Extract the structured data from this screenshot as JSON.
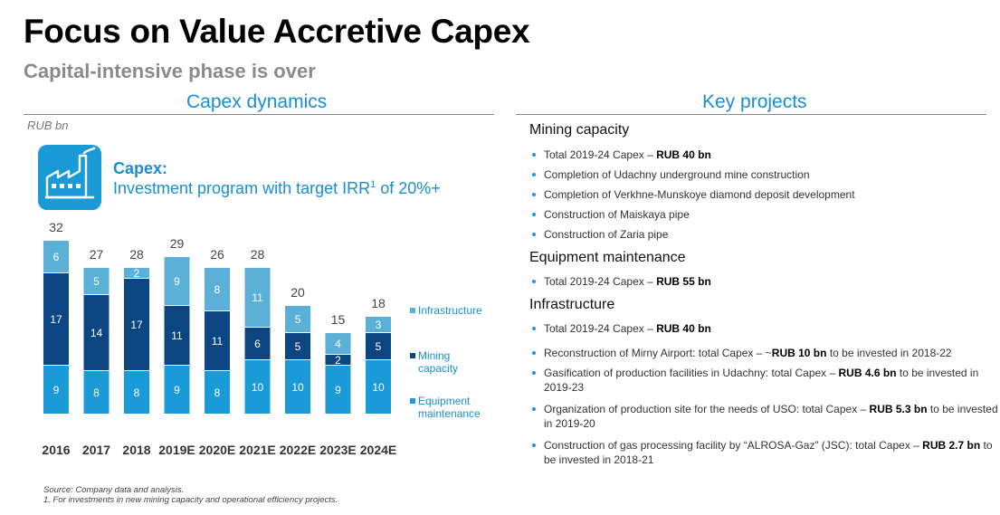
{
  "title": "Focus on Value Accretive Capex",
  "subtitle": "Capital-intensive phase is over",
  "left_heading": "Capex dynamics",
  "right_heading": "Key projects",
  "unit": "RUB bn",
  "capex_title": "Capex:",
  "capex_desc": "Investment program with target IRR",
  "capex_sup": "1",
  "capex_desc_end": " of 20%+",
  "icon": "factory-icon",
  "colors": {
    "infrastructure": "#5ab0d6",
    "mining": "#0b4582",
    "equipment": "#1a9ad6",
    "accent": "#1a8ed0"
  },
  "chart_data": {
    "type": "bar",
    "stacked": true,
    "categories": [
      "2016",
      "2017",
      "2018",
      "2019E",
      "2020E",
      "2021E",
      "2022E",
      "2023E",
      "2024E"
    ],
    "totals": [
      32,
      27,
      28,
      29,
      26,
      28,
      20,
      15,
      18
    ],
    "series": [
      {
        "name": "Equipment maintenance",
        "values": [
          9,
          8,
          8,
          9,
          8,
          10,
          10,
          9,
          10
        ]
      },
      {
        "name": "Mining capacity",
        "values": [
          17,
          14,
          17,
          11,
          11,
          6,
          5,
          2,
          5
        ]
      },
      {
        "name": "Infrastructure",
        "values": [
          6,
          5,
          2,
          9,
          8,
          11,
          5,
          4,
          3
        ]
      }
    ],
    "legend_position": "right",
    "ylabel": "RUB bn"
  },
  "legend": [
    {
      "lines": [
        "Infrastructure"
      ]
    },
    {
      "lines": [
        "Mining",
        "capacity"
      ]
    },
    {
      "lines": [
        "Equipment",
        "maintenance"
      ]
    }
  ],
  "groups": [
    {
      "title": "Mining capacity",
      "bullets": [
        {
          "pre": "Total 2019-24 Capex – ",
          "bold": "RUB 40 bn",
          "post": ""
        },
        {
          "pre": "Completion of Udachny underground mine construction",
          "bold": "",
          "post": ""
        },
        {
          "pre": "Completion of Verkhne-Munskoye diamond deposit development",
          "bold": "",
          "post": ""
        },
        {
          "pre": "Construction of Maiskaya pipe",
          "bold": "",
          "post": ""
        },
        {
          "pre": "Construction of Zaria pipe",
          "bold": "",
          "post": ""
        }
      ]
    },
    {
      "title": "Equipment maintenance",
      "bullets": [
        {
          "pre": "Total 2019-24 Capex – ",
          "bold": "RUB 55 bn",
          "post": ""
        }
      ]
    },
    {
      "title": "Infrastructure",
      "bullets": [
        {
          "pre": "Total 2019-24 Capex – ",
          "bold": "RUB 40 bn",
          "post": ""
        },
        {
          "pre": "Reconstruction of Mirny Airport: total Capex – ~",
          "bold": "RUB 10 bn",
          "post": " to be invested in 2018-22"
        },
        {
          "pre": "Gasification of production facilities in Udachny: total Capex – ",
          "bold": "RUB 4.6 bn",
          "post": " to be invested in 2019-23"
        },
        {
          "pre": "Organization of production site for the needs of USO: total Capex – ",
          "bold": "RUB 5.3 bn",
          "post": " to be invested in 2019-20"
        },
        {
          "pre": "Construction of gas processing facility by “ALROSA-Gaz” (JSC): total Capex – ",
          "bold": "RUB 2.7 bn",
          "post": " to be invested in 2018-21"
        }
      ]
    }
  ],
  "footnotes": [
    "Source: Company data and analysis.",
    "1. For investments in new mining capacity and operational efficiency projects."
  ]
}
